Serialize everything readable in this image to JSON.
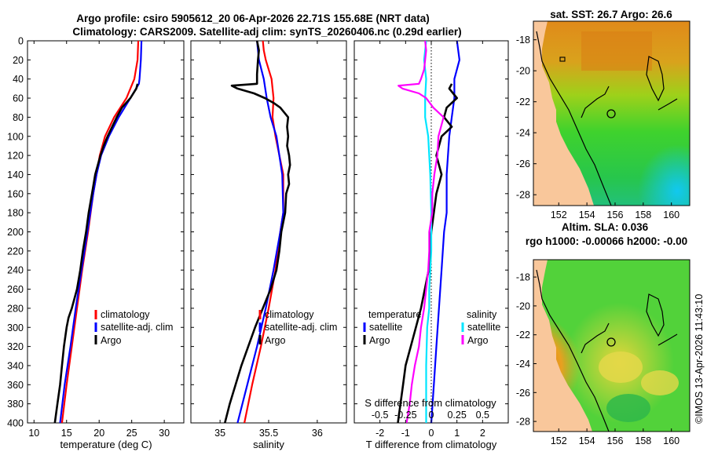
{
  "chart_data": {
    "title": {
      "line1": "Argo profile: csiro 5905612_20 06-Apr-2026 22.71S 155.68E (NRT data)",
      "line2": "Climatology: CARS2009. Satellite-adj clim: synTS_20260406.nc (0.29d earlier)"
    },
    "depth_axis": {
      "ylim": [
        0,
        400
      ],
      "ticks": [
        0,
        20,
        40,
        60,
        80,
        100,
        120,
        140,
        160,
        180,
        200,
        220,
        240,
        260,
        280,
        300,
        320,
        340,
        360,
        380,
        400
      ]
    },
    "colors": {
      "climatology": "#ff0000",
      "satellite": "#0000ff",
      "argo": "#000000",
      "sal_satellite": "#00e5ff",
      "sal_argo": "#ff00ff"
    },
    "panels": [
      {
        "id": "temperature",
        "type": "line",
        "xlabel": "temperature (deg C)",
        "xlim": [
          9,
          33
        ],
        "xticks": [
          10,
          15,
          20,
          25,
          30
        ],
        "legend": [
          "climatology",
          "satellite-adj. clim",
          "Argo"
        ],
        "series": [
          {
            "name": "climatology",
            "color": "#ff0000",
            "depth": [
              0,
              20,
              40,
              60,
              80,
              100,
              120,
              140,
              160,
              200,
              240,
              280,
              320,
              360,
              400
            ],
            "values": [
              26.0,
              25.9,
              25.4,
              24.2,
              22.3,
              20.9,
              20.1,
              19.6,
              19.1,
              18.3,
              17.4,
              16.6,
              15.8,
              15.0,
              14.3
            ]
          },
          {
            "name": "satellite-adj. clim",
            "color": "#0000ff",
            "depth": [
              0,
              20,
              40,
              45,
              60,
              80,
              100,
              120,
              140,
              160,
              200,
              240,
              280,
              320,
              360,
              400
            ],
            "values": [
              26.5,
              26.4,
              26.2,
              26.1,
              24.8,
              23.0,
              21.5,
              20.3,
              19.6,
              19.1,
              18.2,
              17.3,
              16.4,
              15.6,
              14.7,
              14.0
            ]
          },
          {
            "name": "Argo",
            "color": "#000000",
            "depth": [
              45,
              50,
              60,
              70,
              80,
              90,
              100,
              110,
              120,
              130,
              140,
              160,
              180,
              200,
              220,
              240,
              260,
              280,
              290,
              300,
              320,
              340,
              360,
              380,
              400
            ],
            "values": [
              25.9,
              25.7,
              24.8,
              23.5,
              22.7,
              22.0,
              21.3,
              20.7,
              20.2,
              19.8,
              19.4,
              18.9,
              18.4,
              18.0,
              17.5,
              17.1,
              16.6,
              15.8,
              15.3,
              15.0,
              14.6,
              14.3,
              14.0,
              13.6,
              13.2
            ]
          }
        ]
      },
      {
        "id": "salinity",
        "type": "line",
        "xlabel": "salinity",
        "xlim": [
          34.7,
          36.3
        ],
        "xticks": [
          35,
          35.5,
          36
        ],
        "legend": [
          "climatology",
          "satellite-adj. clim",
          "Argo"
        ],
        "series": [
          {
            "name": "climatology",
            "color": "#ff0000",
            "depth": [
              0,
              10,
              20,
              40,
              60,
              80,
              100,
              140,
              180,
              200,
              240,
              280,
              320,
              360,
              400
            ],
            "values": [
              35.44,
              35.45,
              35.47,
              35.53,
              35.55,
              35.54,
              35.57,
              35.65,
              35.65,
              35.62,
              35.57,
              35.5,
              35.42,
              35.33,
              35.25
            ]
          },
          {
            "name": "satellite-adj. clim",
            "color": "#0000ff",
            "depth": [
              0,
              20,
              40,
              60,
              80,
              100,
              140,
              180,
              200,
              240,
              280,
              320,
              360,
              400
            ],
            "values": [
              35.38,
              35.4,
              35.45,
              35.48,
              35.52,
              35.58,
              35.64,
              35.65,
              35.62,
              35.55,
              35.47,
              35.38,
              35.28,
              35.18
            ]
          },
          {
            "name": "Argo",
            "color": "#000000",
            "depth": [
              0,
              10,
              20,
              35,
              45,
              47,
              50,
              55,
              60,
              65,
              70,
              80,
              90,
              100,
              110,
              120,
              130,
              140,
              150,
              160,
              180,
              200,
              220,
              240,
              260,
              280,
              300,
              320,
              340,
              360,
              380,
              400
            ],
            "values": [
              35.38,
              35.4,
              35.39,
              35.38,
              35.38,
              35.12,
              35.18,
              35.35,
              35.46,
              35.55,
              35.62,
              35.7,
              35.69,
              35.7,
              35.69,
              35.71,
              35.72,
              35.7,
              35.71,
              35.68,
              35.67,
              35.63,
              35.61,
              35.58,
              35.52,
              35.44,
              35.36,
              35.29,
              35.22,
              35.16,
              35.1,
              35.05
            ]
          }
        ]
      },
      {
        "id": "difference",
        "type": "line",
        "xlabel": "T difference from climatology",
        "top_axis_label": "S difference from climatology",
        "xlim": [
          -3,
          3
        ],
        "xticks": [
          -2,
          -1,
          0,
          1,
          2
        ],
        "xtick_labels": [
          "-2",
          "-1",
          "0",
          "1",
          "2"
        ],
        "top_ticks": [
          -0.5,
          -0.25,
          0,
          0.25,
          0.5
        ],
        "top_tick_labels": [
          "-0.5",
          "-0.25",
          "0",
          "0.25",
          "0.5"
        ],
        "legend_temperature": {
          "header": "temperature",
          "items": [
            "satellite",
            "Argo"
          ]
        },
        "legend_salinity": {
          "header": "salinity",
          "items": [
            "satellite",
            "Argo"
          ]
        },
        "series": [
          {
            "name": "T satellite",
            "color": "#0000ff",
            "depth": [
              0,
              20,
              40,
              60,
              80,
              100,
              140,
              180,
              200,
              240,
              280,
              320,
              360,
              400
            ],
            "values": [
              1.0,
              1.1,
              0.9,
              0.9,
              0.8,
              0.7,
              0.6,
              0.6,
              0.5,
              0.4,
              0.3,
              0.2,
              0.1,
              0.0
            ]
          },
          {
            "name": "T Argo",
            "color": "#000000",
            "depth": [
              45,
              50,
              60,
              70,
              80,
              90,
              100,
              120,
              140,
              160,
              200,
              240,
              280,
              300,
              320,
              340,
              360,
              380,
              400
            ],
            "values": [
              0.8,
              0.7,
              1.0,
              0.6,
              0.5,
              0.8,
              0.4,
              0.2,
              0.4,
              0.2,
              0.0,
              -0.1,
              -0.4,
              -0.6,
              -0.8,
              -1.0,
              -1.1,
              -1.2,
              -1.3
            ]
          },
          {
            "name": "S satellite",
            "color": "#00e5ff",
            "depth": [
              0,
              10,
              20,
              40,
              60,
              80,
              100,
              140,
              180,
              220,
              260,
              280,
              300,
              340,
              380,
              400
            ],
            "values": [
              -0.05,
              -0.06,
              -0.07,
              -0.05,
              -0.06,
              -0.06,
              -0.03,
              -0.01,
              0.0,
              0.0,
              -0.02,
              -0.02,
              -0.04,
              -0.05,
              -0.05,
              -0.05
            ]
          },
          {
            "name": "S Argo",
            "color": "#ff00ff",
            "depth": [
              0,
              10,
              20,
              30,
              40,
              45,
              47,
              50,
              55,
              60,
              70,
              80,
              100,
              120,
              140,
              160,
              180,
              200,
              220,
              240,
              260,
              280,
              300,
              320,
              340,
              360,
              380,
              400
            ],
            "values": [
              -0.06,
              -0.05,
              -0.06,
              -0.07,
              -0.1,
              -0.12,
              -0.32,
              -0.28,
              -0.12,
              -0.05,
              0.02,
              0.12,
              0.07,
              0.06,
              0.03,
              0.01,
              0.01,
              -0.02,
              -0.02,
              -0.03,
              -0.05,
              -0.07,
              -0.1,
              -0.12,
              -0.16,
              -0.19,
              -0.21,
              -0.24
            ]
          }
        ]
      }
    ],
    "maps": [
      {
        "id": "sst-map",
        "type": "heatmap",
        "title": "sat. SST: 26.7 Argo: 26.6",
        "xticks": [
          152,
          154,
          156,
          158,
          160
        ],
        "yticks": [
          -18,
          -20,
          -22,
          -24,
          -26,
          -28
        ],
        "xlim": [
          150.2,
          161.3
        ],
        "ylim": [
          -28.7,
          -16.8
        ],
        "argo_position": {
          "lon": 155.68,
          "lat": -22.71
        }
      },
      {
        "id": "sla-map",
        "type": "heatmap",
        "title": "Altim. SLA: 0.036",
        "subtitle": "rgo h1000: -0.00066 h2000: -0.00",
        "xticks": [
          152,
          154,
          156,
          158,
          160
        ],
        "yticks": [
          -18,
          -20,
          -22,
          -24,
          -26,
          -28
        ],
        "xlim": [
          150.2,
          161.3
        ],
        "ylim": [
          -28.7,
          -16.8
        ],
        "argo_position": {
          "lon": 155.68,
          "lat": -22.71
        }
      }
    ],
    "credit": "©IMOS 13-Apr-2026 11:43:10"
  }
}
